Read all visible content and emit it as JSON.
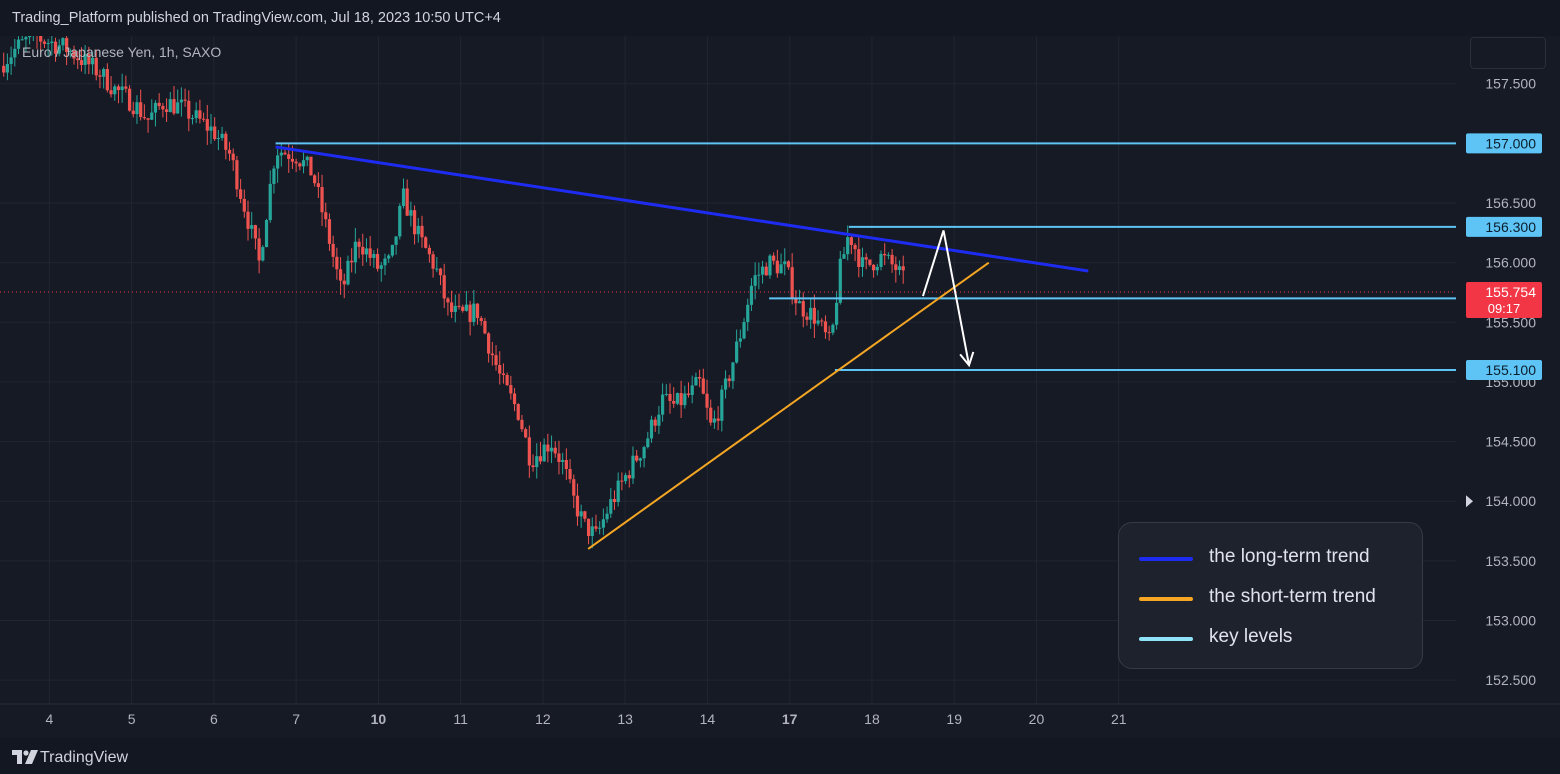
{
  "header": {
    "published": "Trading_Platform published on TradingView.com, Jul 18, 2023 10:50 UTC+4"
  },
  "chart_title": "Euro / Japanese Yen, 1h, SAXO",
  "footer": {
    "brand": "TradingView",
    "logo_icon": "tradingview-logo-icon"
  },
  "colors": {
    "background": "#161a25",
    "up": "#26a69a",
    "down": "#ef5350",
    "long_trend": "#1e2bf0",
    "short_trend": "#f5a623",
    "key_level": "#5ec4f5",
    "current_price": "#f23645",
    "arrow": "#ffffff"
  },
  "legend": {
    "items": [
      {
        "label": "the long-term trend",
        "color": "#1e2bf0"
      },
      {
        "label": "the short-term trend",
        "color": "#f5a623"
      },
      {
        "label": "key levels",
        "color": "#8ee3f8"
      }
    ]
  },
  "chart_data": {
    "type": "candlestick",
    "symbol": "EURJPY",
    "timeframe": "1h",
    "y_range": [
      152.3,
      157.9
    ],
    "x_range": [
      3.4,
      21.1
    ],
    "y_ticks": [
      "152.500",
      "153.000",
      "153.500",
      "154.000",
      "154.500",
      "155.000",
      "155.500",
      "156.000",
      "156.500",
      "157.500"
    ],
    "y_tick_values": [
      152.5,
      153.0,
      153.5,
      154.0,
      154.5,
      155.0,
      155.5,
      156.0,
      156.5,
      157.5
    ],
    "x_ticks": [
      {
        "label": "4",
        "day": 4,
        "bold": false
      },
      {
        "label": "5",
        "day": 5,
        "bold": false
      },
      {
        "label": "6",
        "day": 6,
        "bold": false
      },
      {
        "label": "7",
        "day": 7,
        "bold": false
      },
      {
        "label": "10",
        "day": 8,
        "bold": true
      },
      {
        "label": "11",
        "day": 9,
        "bold": false
      },
      {
        "label": "12",
        "day": 10,
        "bold": false
      },
      {
        "label": "13",
        "day": 11,
        "bold": false
      },
      {
        "label": "14",
        "day": 12,
        "bold": false
      },
      {
        "label": "17",
        "day": 13,
        "bold": true
      },
      {
        "label": "18",
        "day": 14,
        "bold": false
      },
      {
        "label": "19",
        "day": 15,
        "bold": false
      },
      {
        "label": "20",
        "day": 16,
        "bold": false
      },
      {
        "label": "21",
        "day": 17,
        "bold": false
      }
    ],
    "current_price": {
      "value": 155.754,
      "label": "155.754",
      "countdown": "09:17"
    },
    "key_levels": [
      {
        "value": 157.0,
        "label": "157.000",
        "x_start": 6.75
      },
      {
        "value": 156.3,
        "label": "156.300",
        "x_start": 13.72
      },
      {
        "value": 155.7,
        "label": "155.700",
        "x_start": 12.75
      },
      {
        "value": 155.1,
        "label": "155.100",
        "x_start": 13.55
      }
    ],
    "long_term_trend": {
      "start": [
        6.75,
        156.97
      ],
      "end": [
        16.63,
        155.93
      ]
    },
    "short_term_trend": {
      "start": [
        10.55,
        153.6
      ],
      "end": [
        15.42,
        156.0
      ]
    },
    "projection_arrow": [
      [
        14.62,
        155.72
      ],
      [
        14.87,
        156.27
      ],
      [
        15.18,
        155.14
      ]
    ],
    "close_points": [
      [
        3.4,
        157.65
      ],
      [
        3.6,
        157.8
      ],
      [
        3.8,
        157.9
      ],
      [
        4.0,
        157.85
      ],
      [
        4.2,
        157.8
      ],
      [
        4.4,
        157.7
      ],
      [
        4.6,
        157.6
      ],
      [
        4.8,
        157.45
      ],
      [
        5.0,
        157.35
      ],
      [
        5.2,
        157.2
      ],
      [
        5.4,
        157.35
      ],
      [
        5.6,
        157.3
      ],
      [
        5.8,
        157.2
      ],
      [
        6.0,
        157.1
      ],
      [
        6.2,
        156.9
      ],
      [
        6.4,
        156.4
      ],
      [
        6.55,
        156.0
      ],
      [
        6.75,
        156.95
      ],
      [
        7.0,
        156.9
      ],
      [
        7.2,
        156.75
      ],
      [
        7.4,
        156.2
      ],
      [
        7.55,
        155.75
      ],
      [
        7.75,
        156.2
      ],
      [
        8.0,
        155.95
      ],
      [
        8.15,
        156.0
      ],
      [
        8.3,
        156.55
      ],
      [
        8.5,
        156.2
      ],
      [
        8.7,
        155.95
      ],
      [
        8.85,
        155.6
      ],
      [
        9.0,
        155.55
      ],
      [
        9.2,
        155.6
      ],
      [
        9.35,
        155.3
      ],
      [
        9.5,
        155.0
      ],
      [
        9.7,
        154.75
      ],
      [
        9.85,
        154.35
      ],
      [
        10.1,
        154.5
      ],
      [
        10.25,
        154.3
      ],
      [
        10.35,
        154.05
      ],
      [
        10.5,
        153.8
      ],
      [
        10.65,
        153.7
      ],
      [
        10.8,
        153.95
      ],
      [
        11.0,
        154.2
      ],
      [
        11.25,
        154.5
      ],
      [
        11.45,
        154.85
      ],
      [
        11.6,
        154.8
      ],
      [
        11.8,
        154.9
      ],
      [
        11.9,
        155.0
      ],
      [
        12.05,
        154.6
      ],
      [
        12.2,
        154.9
      ],
      [
        12.4,
        155.4
      ],
      [
        12.55,
        155.85
      ],
      [
        12.75,
        156.0
      ],
      [
        12.95,
        155.95
      ],
      [
        13.1,
        155.65
      ],
      [
        13.3,
        155.55
      ],
      [
        13.5,
        155.3
      ],
      [
        13.6,
        155.9
      ],
      [
        13.72,
        156.25
      ],
      [
        13.9,
        155.95
      ],
      [
        14.1,
        156.05
      ],
      [
        14.3,
        155.95
      ],
      [
        14.42,
        155.8
      ]
    ]
  }
}
